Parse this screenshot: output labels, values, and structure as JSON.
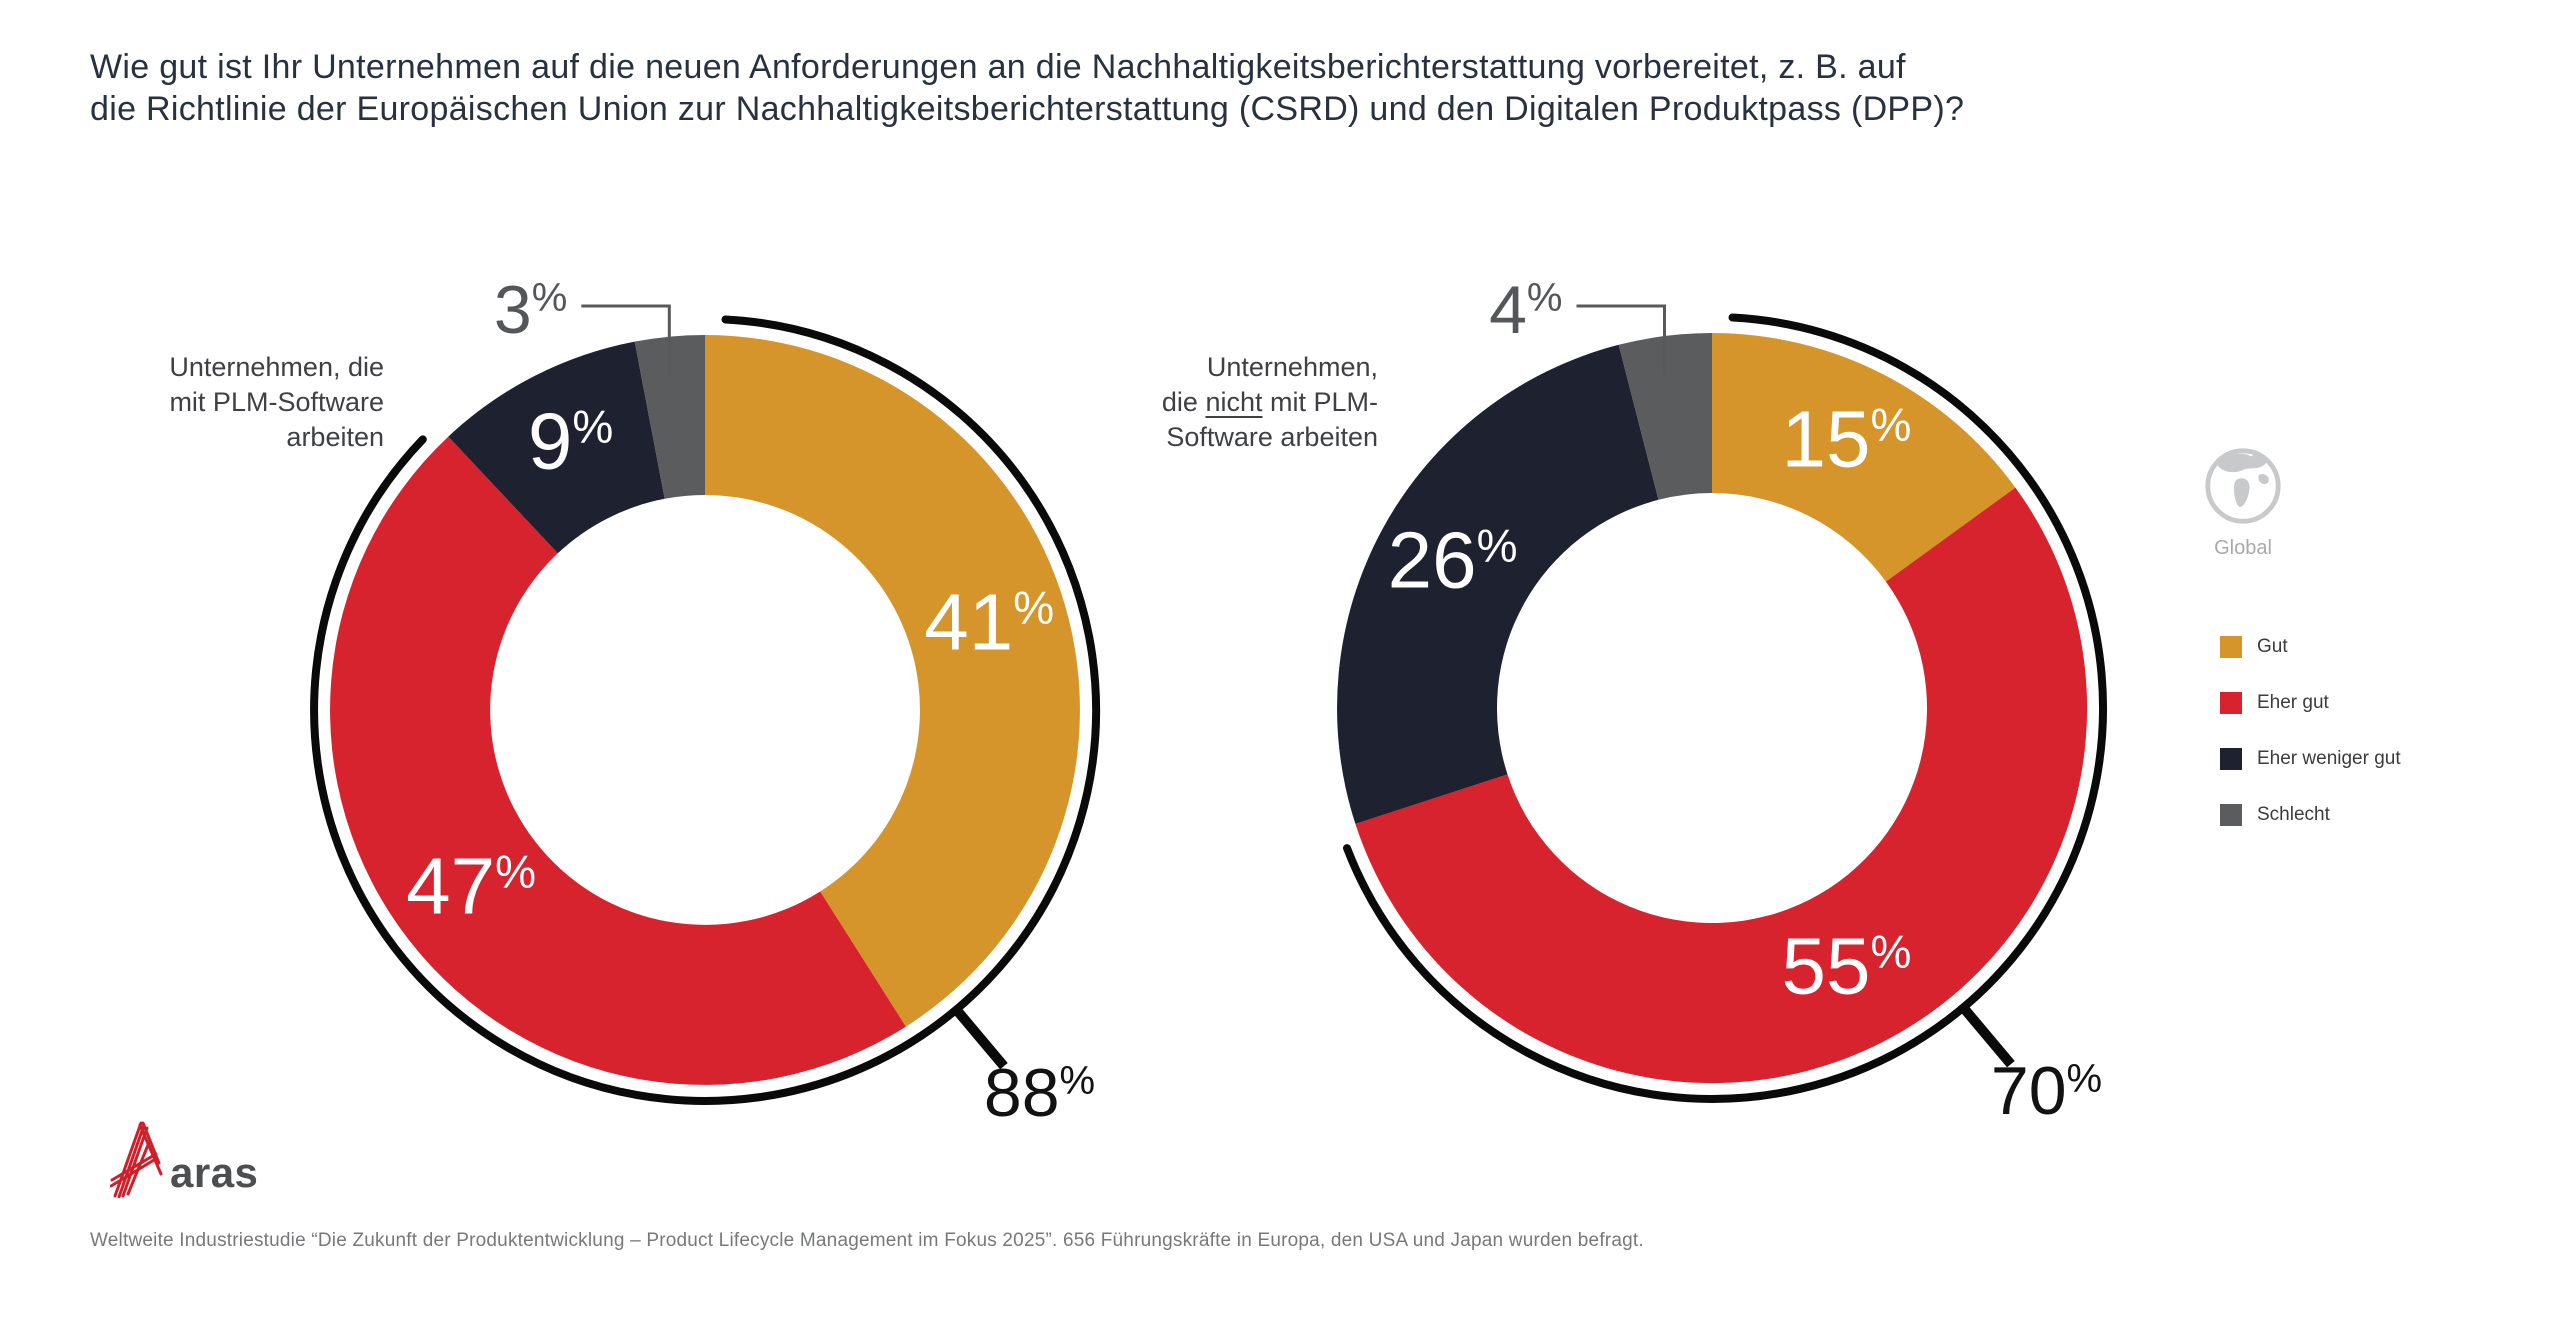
{
  "title": {
    "line1": "Wie gut ist Ihr Unternehmen auf die neuen Anforderungen an die Nachhaltigkeitsberichterstattung vorbereitet, z. B. auf",
    "line2": "die Richtlinie der Europäischen Union zur Nachhaltigkeitsberichterstattung (CSRD) und den Digitalen Produktpass (DPP)?"
  },
  "chart_data": {
    "type": "pie",
    "subtype": "donut-pair",
    "unit": "%",
    "categories": [
      "Gut",
      "Eher gut",
      "Eher weniger gut",
      "Schlecht"
    ],
    "colors": {
      "Gut": "#D6952B",
      "Eher gut": "#D7232E",
      "Eher weniger gut": "#1E2230",
      "Schlecht": "#5B5C5E"
    },
    "highlight_arc_color": "#0A0A0A",
    "legend_position": "right",
    "charts": [
      {
        "id": "with-plm",
        "group_label_lines": [
          [
            {
              "t": "Unternehmen, die"
            }
          ],
          [
            {
              "t": "mit PLM-Software"
            }
          ],
          [
            {
              "t": "arbeiten"
            }
          ]
        ],
        "values": [
          41,
          47,
          9,
          3
        ],
        "value_labels": [
          "41",
          "47",
          "9",
          "3"
        ],
        "inside_labels": [
          true,
          true,
          true,
          false
        ],
        "callout": {
          "display": "3",
          "segment_index": 3
        },
        "highlight_total": {
          "display": "88",
          "value": 88,
          "covers": [
            "Gut",
            "Eher gut"
          ]
        }
      },
      {
        "id": "without-plm",
        "group_label_lines": [
          [
            {
              "t": "Unternehmen,"
            }
          ],
          [
            {
              "t": "die "
            },
            {
              "t": "nicht",
              "u": true
            },
            {
              "t": " mit PLM-"
            }
          ],
          [
            {
              "t": "Software arbeiten"
            }
          ]
        ],
        "values": [
          15,
          55,
          26,
          4
        ],
        "value_labels": [
          "15",
          "55",
          "26",
          "4"
        ],
        "inside_labels": [
          true,
          true,
          true,
          false
        ],
        "callout": {
          "display": "4",
          "segment_index": 3
        },
        "highlight_total": {
          "display": "70",
          "value": 70,
          "covers": [
            "Gut",
            "Eher gut"
          ]
        }
      }
    ]
  },
  "legend": {
    "region_label": "Global",
    "items": [
      {
        "label": "Gut",
        "color": "#D6952B"
      },
      {
        "label": "Eher gut",
        "color": "#D7232E"
      },
      {
        "label": "Eher weniger gut",
        "color": "#1E2230"
      },
      {
        "label": "Schlecht",
        "color": "#5B5C5E"
      }
    ]
  },
  "footer": {
    "text": "Weltweite Industriestudie “Die Zukunft der Produktentwicklung – Product Lifecycle Management im Fokus 2025”. 656 Führungskräfte in Europa, den USA und Japan wurden befragt."
  },
  "logo": {
    "text": "aras"
  }
}
